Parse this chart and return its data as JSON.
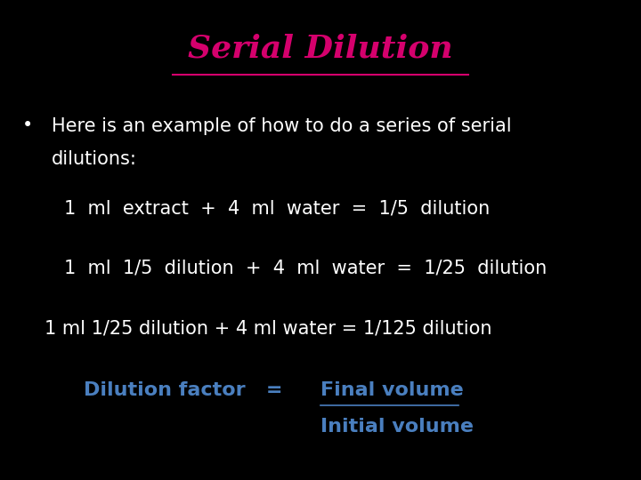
{
  "background_color": "#000000",
  "title": "Serial Dilution",
  "title_color": "#D5006D",
  "title_fontsize": 26,
  "bullet_text_line1": "Here is an example of how to do a series of serial",
  "bullet_text_line2": "dilutions:",
  "body_color": "#ffffff",
  "body_fontsize": 15,
  "line1": "1  ml  extract  +  4  ml  water  =  1/5  dilution",
  "line2": "1  ml  1/5  dilution  +  4  ml  water  =  1/25  dilution",
  "line3": "1 ml 1/25 dilution + 4 ml water = 1/125 dilution",
  "line_fontsize": 15,
  "df_label": "Dilution factor   =",
  "df_color": "#4A7FBF",
  "df_fontsize": 16,
  "fv_label": "Final volume",
  "fv_color": "#4A7FBF",
  "fv_fontsize": 16,
  "iv_label": "Initial volume",
  "iv_color": "#4A7FBF",
  "iv_fontsize": 16,
  "title_underline_color": "#D5006D"
}
